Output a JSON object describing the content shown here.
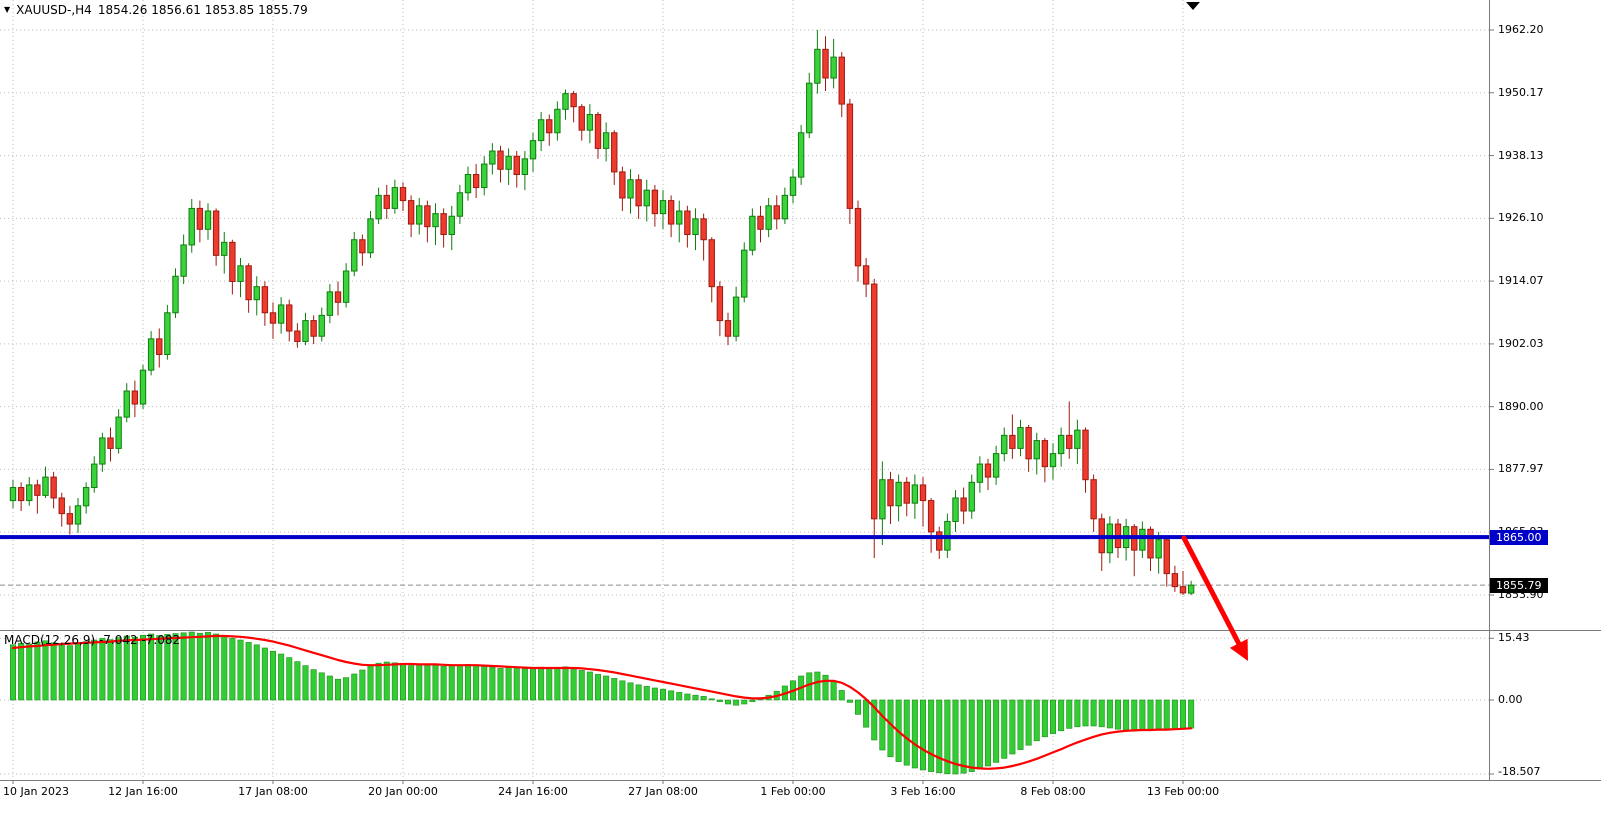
{
  "header": {
    "marker": "▼",
    "symbol_period": "XAUUSD-,H4",
    "ohlc": "1854.26 1856.61 1853.85 1855.79"
  },
  "macd_header": "MACD(12,26,9) -7.042 -7.082",
  "price_axis": {
    "labels": [
      "1962.20",
      "1950.17",
      "1938.13",
      "1926.10",
      "1914.07",
      "1902.03",
      "1890.00",
      "1877.97",
      "1865.93",
      "1853.90"
    ],
    "hline_label": "1865.00",
    "current_label": "1855.79"
  },
  "macd_axis": {
    "labels": [
      "15.43",
      "0.00",
      "-18.507"
    ]
  },
  "time_axis": {
    "labels": [
      "10 Jan 2023",
      "12 Jan 16:00",
      "17 Jan 08:00",
      "20 Jan 00:00",
      "24 Jan 16:00",
      "27 Jan 08:00",
      "1 Feb 00:00",
      "3 Feb 16:00",
      "8 Feb 08:00",
      "13 Feb 00:00"
    ]
  },
  "colors": {
    "background": "#ffffff",
    "grid": "#bdbdbd",
    "bull": "#3bd33b",
    "bull_border": "#0e7e0e",
    "bear": "#ef3b2e",
    "bear_border": "#9e1a10",
    "macd_histogram": "#32CD32",
    "macd_border": "#1e8e1e",
    "macd_signal": "#ff0000",
    "hline": "#0000C8",
    "current_price_bg": "#000000",
    "arrow": "#ff0000",
    "axis_text": "#000000"
  },
  "chart_data": {
    "type": "candlestick",
    "title": "XAUUSD-,H4",
    "symbol": "XAUUSD-",
    "timeframe": "H4",
    "current_bar": {
      "open": 1854.26,
      "high": 1856.61,
      "low": 1853.85,
      "close": 1855.79
    },
    "price_scale": {
      "top": 1962.2,
      "bottom": 1853.9
    },
    "price_axis_values": [
      1962.2,
      1950.17,
      1938.13,
      1926.1,
      1914.07,
      1902.03,
      1890.0,
      1877.97,
      1865.93,
      1853.9
    ],
    "bars_per_gridline": 16,
    "candles": [
      [
        1872.0,
        1876.0,
        1870.5,
        1874.5
      ],
      [
        1874.5,
        1875.5,
        1870.0,
        1872.0
      ],
      [
        1872.0,
        1876.5,
        1871.0,
        1875.0
      ],
      [
        1875.0,
        1876.0,
        1869.5,
        1873.0
      ],
      [
        1873.0,
        1878.5,
        1872.5,
        1876.5
      ],
      [
        1876.5,
        1877.5,
        1870.5,
        1872.5
      ],
      [
        1872.5,
        1873.5,
        1867.0,
        1869.5
      ],
      [
        1869.5,
        1871.0,
        1865.5,
        1867.5
      ],
      [
        1867.5,
        1872.5,
        1865.8,
        1871.0
      ],
      [
        1871.0,
        1875.5,
        1869.5,
        1874.5
      ],
      [
        1874.5,
        1880.5,
        1873.5,
        1879.0
      ],
      [
        1879.0,
        1885.0,
        1877.5,
        1884.0
      ],
      [
        1884.0,
        1886.0,
        1879.5,
        1882.0
      ],
      [
        1882.0,
        1889.5,
        1881.0,
        1888.0
      ],
      [
        1888.0,
        1894.5,
        1887.0,
        1893.0
      ],
      [
        1893.0,
        1895.0,
        1888.0,
        1890.5
      ],
      [
        1890.5,
        1898.0,
        1889.5,
        1897.0
      ],
      [
        1897.0,
        1904.5,
        1896.0,
        1903.0
      ],
      [
        1903.0,
        1905.0,
        1897.5,
        1900.0
      ],
      [
        1900.0,
        1909.5,
        1899.0,
        1908.0
      ],
      [
        1908.0,
        1916.5,
        1907.0,
        1915.0
      ],
      [
        1915.0,
        1923.0,
        1913.5,
        1921.0
      ],
      [
        1921.0,
        1929.8,
        1919.5,
        1928.0
      ],
      [
        1928.0,
        1929.5,
        1921.5,
        1924.0
      ],
      [
        1924.0,
        1929.0,
        1922.0,
        1927.5
      ],
      [
        1927.5,
        1928.0,
        1917.0,
        1919.0
      ],
      [
        1919.0,
        1923.5,
        1915.5,
        1921.5
      ],
      [
        1921.5,
        1922.0,
        1911.5,
        1914.0
      ],
      [
        1914.0,
        1918.5,
        1911.0,
        1917.0
      ],
      [
        1917.0,
        1917.5,
        1908.0,
        1910.5
      ],
      [
        1910.5,
        1915.0,
        1907.5,
        1913.0
      ],
      [
        1913.0,
        1914.0,
        1905.5,
        1908.0
      ],
      [
        1908.0,
        1910.0,
        1903.0,
        1906.0
      ],
      [
        1906.0,
        1911.0,
        1904.0,
        1909.5
      ],
      [
        1909.5,
        1910.5,
        1902.5,
        1904.5
      ],
      [
        1904.5,
        1906.0,
        1901.3,
        1902.5
      ],
      [
        1902.5,
        1908.0,
        1901.8,
        1906.5
      ],
      [
        1906.5,
        1907.5,
        1902.0,
        1903.5
      ],
      [
        1903.5,
        1909.0,
        1902.5,
        1907.5
      ],
      [
        1907.5,
        1913.5,
        1906.0,
        1912.0
      ],
      [
        1912.0,
        1914.0,
        1907.5,
        1910.0
      ],
      [
        1910.0,
        1917.5,
        1909.0,
        1916.0
      ],
      [
        1916.0,
        1923.5,
        1915.0,
        1922.0
      ],
      [
        1922.0,
        1923.0,
        1917.0,
        1919.5
      ],
      [
        1919.5,
        1927.5,
        1918.5,
        1926.0
      ],
      [
        1926.0,
        1932.0,
        1925.0,
        1930.5
      ],
      [
        1930.5,
        1932.5,
        1926.0,
        1928.0
      ],
      [
        1928.0,
        1933.5,
        1927.0,
        1932.0
      ],
      [
        1932.0,
        1933.0,
        1927.5,
        1929.5
      ],
      [
        1929.5,
        1930.5,
        1922.5,
        1925.0
      ],
      [
        1925.0,
        1930.0,
        1923.0,
        1928.5
      ],
      [
        1928.5,
        1929.5,
        1921.5,
        1924.5
      ],
      [
        1924.5,
        1929.0,
        1921.0,
        1927.0
      ],
      [
        1927.0,
        1928.0,
        1920.5,
        1923.0
      ],
      [
        1923.0,
        1928.5,
        1920.0,
        1926.5
      ],
      [
        1926.5,
        1932.5,
        1925.0,
        1931.0
      ],
      [
        1931.0,
        1936.0,
        1929.5,
        1934.5
      ],
      [
        1934.5,
        1936.5,
        1930.0,
        1932.0
      ],
      [
        1932.0,
        1938.0,
        1930.5,
        1936.5
      ],
      [
        1936.5,
        1940.5,
        1934.5,
        1939.0
      ],
      [
        1939.0,
        1940.0,
        1933.0,
        1935.5
      ],
      [
        1935.5,
        1939.5,
        1932.5,
        1938.0
      ],
      [
        1938.0,
        1939.0,
        1932.0,
        1934.5
      ],
      [
        1934.5,
        1939.0,
        1931.5,
        1937.5
      ],
      [
        1937.5,
        1942.5,
        1935.0,
        1941.0
      ],
      [
        1941.0,
        1946.5,
        1939.0,
        1945.0
      ],
      [
        1945.0,
        1946.0,
        1940.0,
        1942.5
      ],
      [
        1942.5,
        1948.5,
        1941.0,
        1947.0
      ],
      [
        1947.0,
        1950.8,
        1945.0,
        1950.0
      ],
      [
        1950.0,
        1950.5,
        1944.5,
        1947.5
      ],
      [
        1947.5,
        1948.0,
        1941.0,
        1943.0
      ],
      [
        1943.0,
        1948.0,
        1940.5,
        1946.0
      ],
      [
        1946.0,
        1946.5,
        1937.5,
        1939.5
      ],
      [
        1939.5,
        1944.5,
        1937.0,
        1942.5
      ],
      [
        1942.5,
        1943.0,
        1932.5,
        1935.0
      ],
      [
        1935.0,
        1936.0,
        1927.5,
        1930.0
      ],
      [
        1930.0,
        1935.5,
        1927.0,
        1933.5
      ],
      [
        1933.5,
        1934.5,
        1926.0,
        1928.5
      ],
      [
        1928.5,
        1933.5,
        1925.5,
        1931.5
      ],
      [
        1931.5,
        1932.5,
        1924.5,
        1927.0
      ],
      [
        1927.0,
        1931.5,
        1924.0,
        1929.5
      ],
      [
        1929.5,
        1930.5,
        1922.5,
        1925.0
      ],
      [
        1925.0,
        1929.5,
        1921.5,
        1927.5
      ],
      [
        1927.5,
        1928.5,
        1920.5,
        1923.0
      ],
      [
        1923.0,
        1928.0,
        1920.0,
        1926.0
      ],
      [
        1926.0,
        1927.0,
        1918.0,
        1922.0
      ],
      [
        1922.0,
        1922.5,
        1910.0,
        1913.0
      ],
      [
        1913.0,
        1914.0,
        1903.5,
        1906.5
      ],
      [
        1906.5,
        1908.0,
        1901.8,
        1903.5
      ],
      [
        1903.5,
        1913.0,
        1902.5,
        1911.0
      ],
      [
        1911.0,
        1921.5,
        1910.0,
        1920.0
      ],
      [
        1920.0,
        1928.0,
        1919.0,
        1926.5
      ],
      [
        1926.5,
        1928.5,
        1921.5,
        1924.0
      ],
      [
        1924.0,
        1930.0,
        1922.5,
        1928.5
      ],
      [
        1928.5,
        1930.5,
        1924.0,
        1926.0
      ],
      [
        1926.0,
        1932.0,
        1925.0,
        1930.5
      ],
      [
        1930.5,
        1935.5,
        1929.0,
        1934.0
      ],
      [
        1934.0,
        1944.0,
        1932.5,
        1942.5
      ],
      [
        1942.5,
        1954.0,
        1941.5,
        1952.0
      ],
      [
        1952.0,
        1962.2,
        1950.0,
        1958.5
      ],
      [
        1958.5,
        1961.0,
        1950.5,
        1953.0
      ],
      [
        1953.0,
        1960.5,
        1951.0,
        1957.0
      ],
      [
        1957.0,
        1958.0,
        1945.5,
        1948.0
      ],
      [
        1948.0,
        1949.0,
        1925.0,
        1928.0
      ],
      [
        1928.0,
        1929.5,
        1914.0,
        1917.0
      ],
      [
        1917.0,
        1918.5,
        1911.0,
        1913.5
      ],
      [
        1913.5,
        1914.5,
        1861.0,
        1868.5
      ],
      [
        1868.5,
        1879.5,
        1863.5,
        1876.0
      ],
      [
        1876.0,
        1877.5,
        1867.5,
        1871.0
      ],
      [
        1871.0,
        1877.0,
        1868.0,
        1875.5
      ],
      [
        1875.5,
        1876.5,
        1869.0,
        1871.5
      ],
      [
        1871.5,
        1877.0,
        1868.5,
        1875.0
      ],
      [
        1875.0,
        1876.5,
        1867.0,
        1872.0
      ],
      [
        1872.0,
        1872.5,
        1862.0,
        1866.0
      ],
      [
        1866.0,
        1867.0,
        1860.8,
        1862.5
      ],
      [
        1862.5,
        1869.5,
        1861.0,
        1868.0
      ],
      [
        1868.0,
        1874.0,
        1866.0,
        1872.5
      ],
      [
        1872.5,
        1874.5,
        1867.5,
        1870.0
      ],
      [
        1870.0,
        1877.0,
        1868.5,
        1875.5
      ],
      [
        1875.5,
        1880.5,
        1873.5,
        1879.0
      ],
      [
        1879.0,
        1880.0,
        1874.0,
        1876.5
      ],
      [
        1876.5,
        1882.5,
        1875.0,
        1881.0
      ],
      [
        1881.0,
        1886.0,
        1879.5,
        1884.5
      ],
      [
        1884.5,
        1888.5,
        1880.0,
        1882.0
      ],
      [
        1882.0,
        1887.5,
        1880.5,
        1886.0
      ],
      [
        1886.0,
        1886.5,
        1877.5,
        1880.0
      ],
      [
        1880.0,
        1885.0,
        1877.0,
        1883.5
      ],
      [
        1883.5,
        1884.0,
        1875.5,
        1878.5
      ],
      [
        1878.5,
        1883.0,
        1876.0,
        1881.0
      ],
      [
        1881.0,
        1886.0,
        1878.5,
        1884.5
      ],
      [
        1884.5,
        1891.0,
        1880.0,
        1882.0
      ],
      [
        1882.0,
        1887.5,
        1879.0,
        1885.5
      ],
      [
        1885.5,
        1886.0,
        1873.5,
        1876.0
      ],
      [
        1876.0,
        1877.0,
        1866.0,
        1868.5
      ],
      [
        1868.5,
        1869.5,
        1858.5,
        1862.0
      ],
      [
        1862.0,
        1869.0,
        1860.0,
        1867.5
      ],
      [
        1867.5,
        1868.5,
        1861.0,
        1863.0
      ],
      [
        1863.0,
        1868.5,
        1860.5,
        1867.0
      ],
      [
        1867.0,
        1867.5,
        1857.5,
        1862.5
      ],
      [
        1862.5,
        1868.0,
        1861.0,
        1866.5
      ],
      [
        1866.5,
        1867.0,
        1858.5,
        1861.0
      ],
      [
        1861.0,
        1866.0,
        1858.0,
        1864.5
      ],
      [
        1864.5,
        1865.0,
        1855.5,
        1858.0
      ],
      [
        1858.0,
        1859.5,
        1854.5,
        1855.5
      ],
      [
        1855.5,
        1858.5,
        1853.9,
        1854.3
      ],
      [
        1854.26,
        1856.61,
        1853.85,
        1855.79
      ]
    ],
    "overlays": {
      "horizontal_line": {
        "price": 1865.0,
        "color": "#0000C8",
        "width": 4
      },
      "trend_arrow": {
        "color": "#ff0000",
        "direction": "down-right"
      }
    },
    "macd": {
      "label": "MACD(12,26,9)",
      "macd_value": -7.042,
      "signal_value": -7.082,
      "axis_values": [
        15.43,
        0.0,
        -18.507
      ],
      "histogram": [
        13.8,
        14.2,
        14.0,
        14.5,
        14.8,
        14.3,
        14.0,
        13.6,
        14.1,
        14.6,
        15.0,
        15.4,
        15.1,
        15.6,
        16.0,
        15.7,
        16.2,
        16.5,
        16.1,
        16.4,
        16.6,
        16.8,
        17.0,
        16.7,
        16.9,
        16.5,
        16.0,
        15.4,
        15.0,
        14.4,
        13.8,
        13.0,
        12.2,
        11.5,
        10.6,
        9.6,
        8.6,
        7.6,
        6.8,
        6.0,
        5.2,
        5.6,
        6.5,
        7.5,
        8.5,
        9.2,
        9.5,
        9.3,
        9.0,
        8.6,
        8.8,
        9.0,
        8.7,
        8.4,
        8.6,
        8.8,
        8.9,
        8.6,
        8.4,
        8.2,
        7.9,
        8.1,
        8.0,
        7.8,
        8.0,
        8.2,
        7.9,
        8.1,
        8.3,
        7.8,
        7.4,
        7.0,
        6.4,
        6.0,
        5.4,
        4.8,
        4.3,
        3.8,
        3.4,
        3.0,
        2.7,
        2.3,
        1.9,
        1.5,
        1.2,
        0.9,
        0.3,
        -0.4,
        -1.0,
        -1.3,
        -1.0,
        -0.4,
        0.4,
        1.2,
        2.2,
        3.5,
        4.8,
        6.0,
        6.8,
        7.0,
        6.2,
        4.6,
        2.4,
        -0.6,
        -3.6,
        -6.8,
        -10.0,
        -12.5,
        -14.2,
        -15.4,
        -16.3,
        -17.0,
        -17.5,
        -17.9,
        -18.2,
        -18.45,
        -18.5,
        -18.3,
        -17.9,
        -17.3,
        -16.5,
        -15.6,
        -14.6,
        -13.5,
        -12.4,
        -11.3,
        -10.2,
        -9.2,
        -8.4,
        -7.7,
        -7.1,
        -6.7,
        -6.5,
        -6.5,
        -6.7,
        -7.0,
        -7.3,
        -7.5,
        -7.6,
        -7.6,
        -7.5,
        -7.4,
        -7.3,
        -7.2,
        -7.1,
        -7.042
      ],
      "signal": [
        13.0,
        13.2,
        13.4,
        13.5,
        13.7,
        13.8,
        14.0,
        14.1,
        14.2,
        14.3,
        14.4,
        14.5,
        14.6,
        14.8,
        14.9,
        15.0,
        15.1,
        15.2,
        15.3,
        15.4,
        15.5,
        15.6,
        15.7,
        15.8,
        15.9,
        16.0,
        16.0,
        15.9,
        15.8,
        15.6,
        15.3,
        15.0,
        14.6,
        14.1,
        13.6,
        13.0,
        12.4,
        11.8,
        11.2,
        10.6,
        10.0,
        9.5,
        9.1,
        8.8,
        8.7,
        8.7,
        8.8,
        8.9,
        9.0,
        9.0,
        8.9,
        8.9,
        8.9,
        8.8,
        8.7,
        8.7,
        8.7,
        8.7,
        8.6,
        8.5,
        8.4,
        8.3,
        8.2,
        8.1,
        8.0,
        8.0,
        8.0,
        8.0,
        8.0,
        8.0,
        7.9,
        7.7,
        7.5,
        7.2,
        6.9,
        6.5,
        6.1,
        5.7,
        5.3,
        4.9,
        4.5,
        4.1,
        3.7,
        3.3,
        2.9,
        2.5,
        2.1,
        1.7,
        1.3,
        0.9,
        0.6,
        0.4,
        0.4,
        0.6,
        1.0,
        1.6,
        2.3,
        3.1,
        3.9,
        4.5,
        4.8,
        4.8,
        4.3,
        3.3,
        1.9,
        0.2,
        -1.8,
        -4.0,
        -6.0,
        -7.9,
        -9.6,
        -11.1,
        -12.4,
        -13.5,
        -14.5,
        -15.3,
        -16.0,
        -16.5,
        -16.9,
        -17.1,
        -17.2,
        -17.1,
        -16.9,
        -16.5,
        -16.0,
        -15.4,
        -14.7,
        -13.9,
        -13.1,
        -12.3,
        -11.4,
        -10.6,
        -9.9,
        -9.2,
        -8.6,
        -8.2,
        -7.9,
        -7.7,
        -7.6,
        -7.5,
        -7.5,
        -7.4,
        -7.4,
        -7.3,
        -7.2,
        -7.082
      ]
    }
  }
}
